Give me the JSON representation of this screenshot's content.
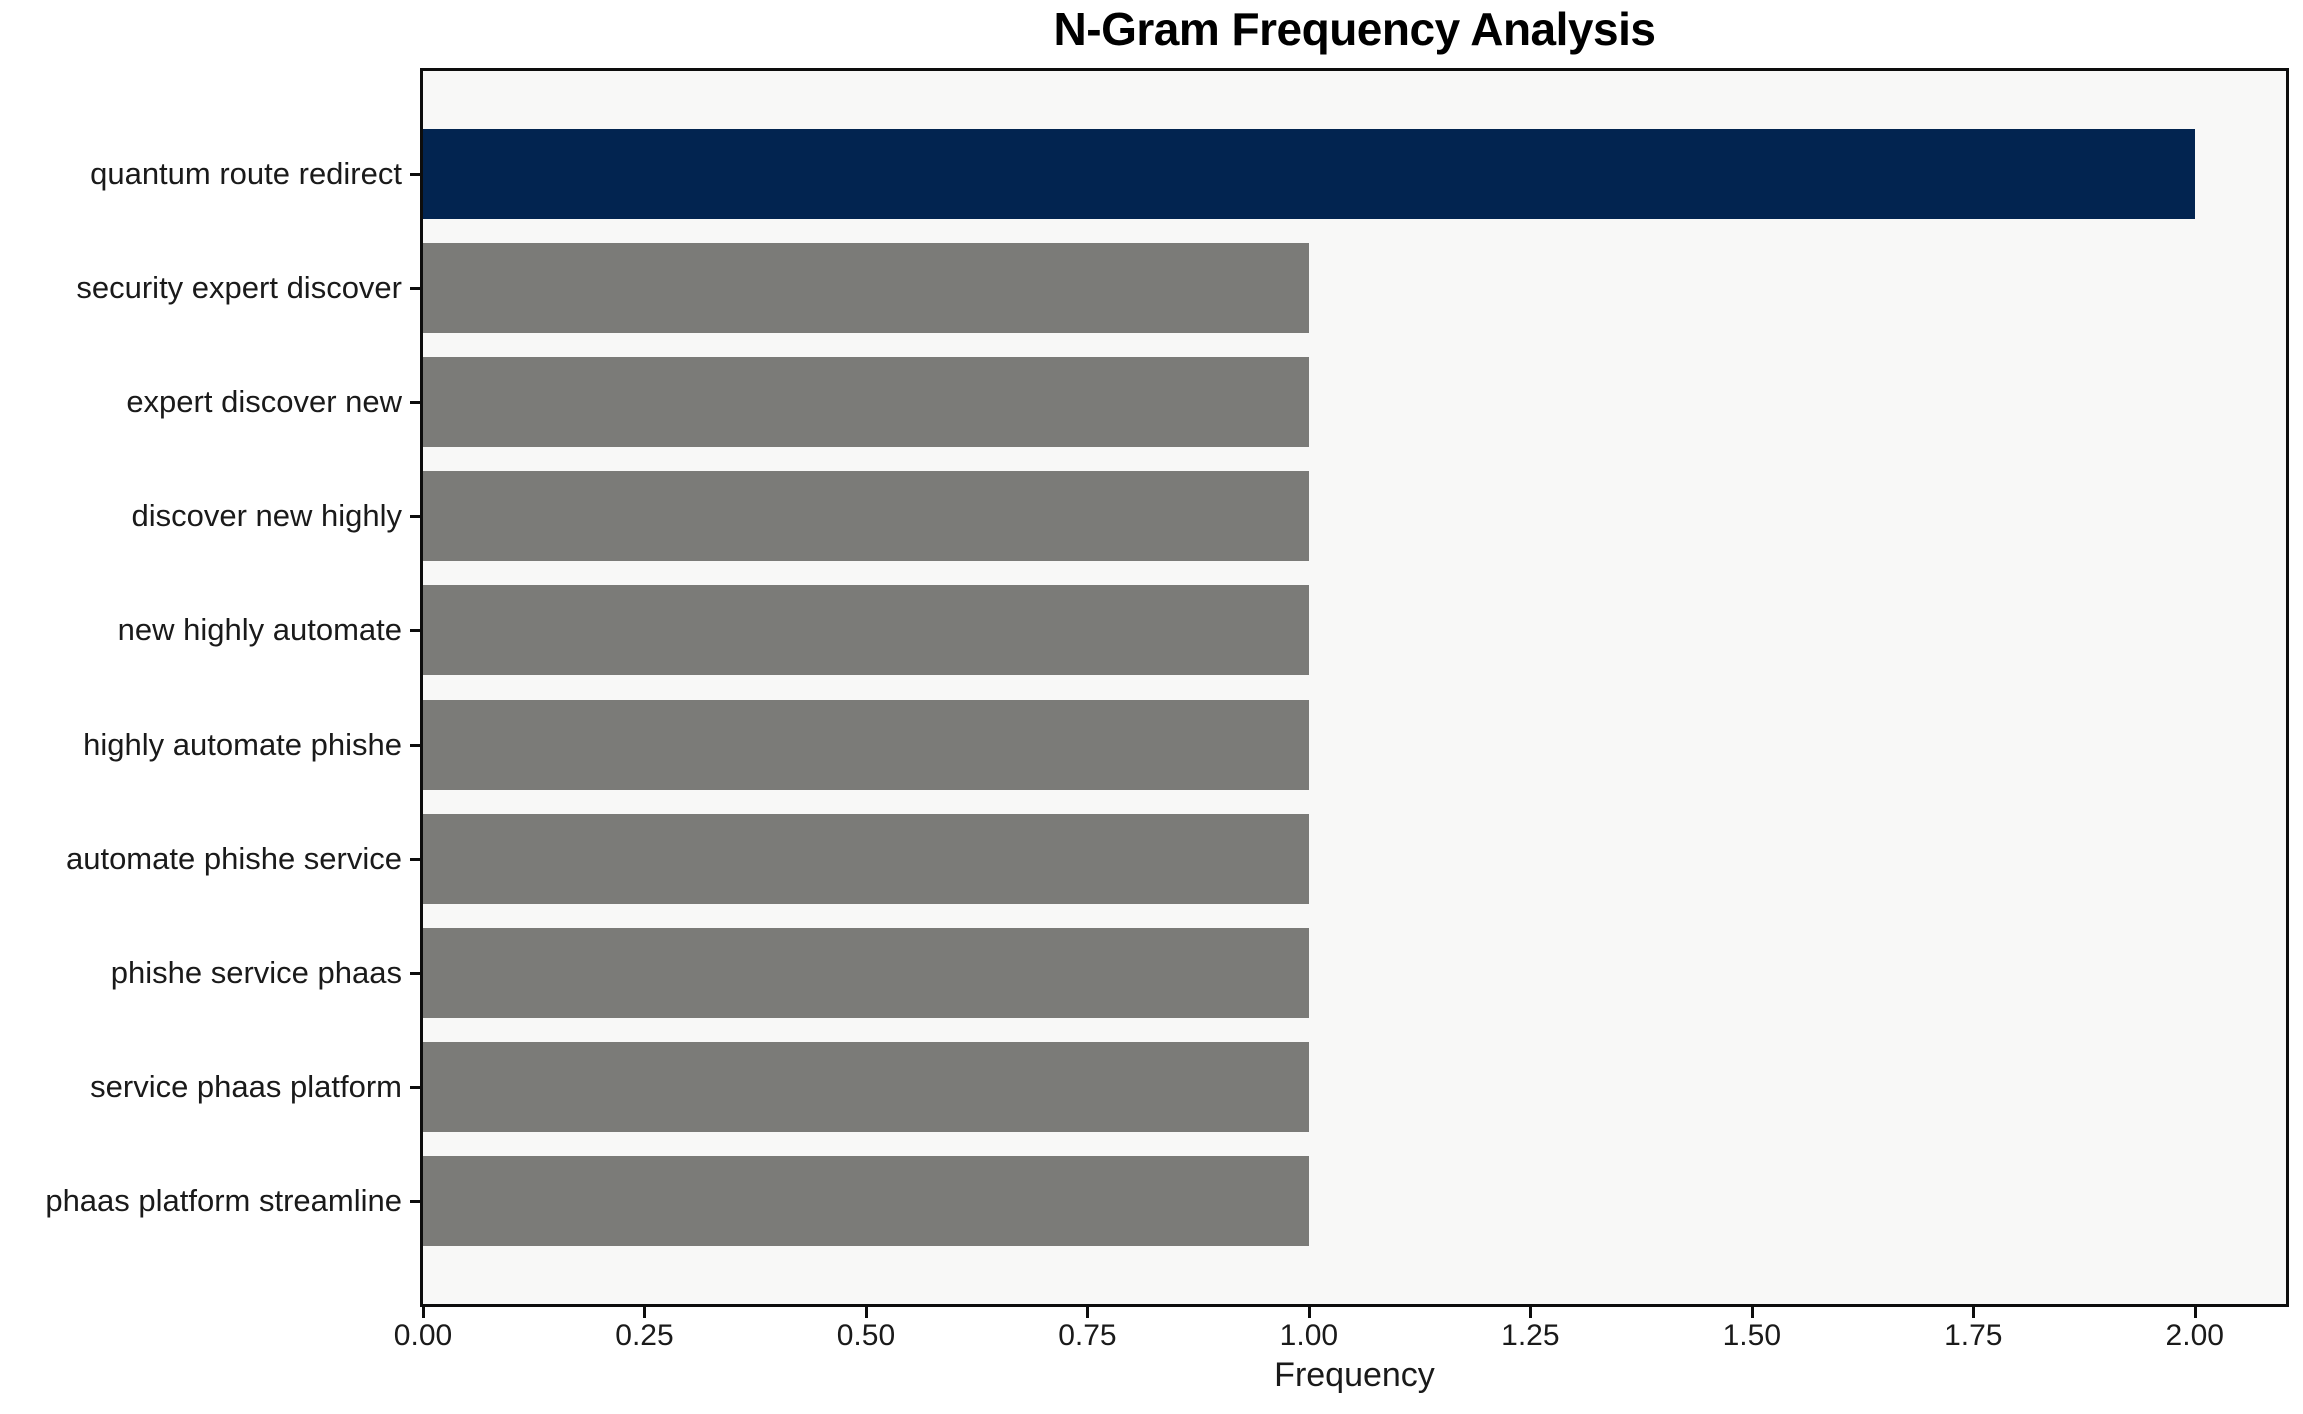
{
  "chart_data": {
    "type": "bar",
    "orientation": "horizontal",
    "title": "N-Gram Frequency Analysis",
    "xlabel": "Frequency",
    "ylabel": "",
    "categories": [
      "quantum route redirect",
      "security expert discover",
      "expert discover new",
      "discover new highly",
      "new highly automate",
      "highly automate phishe",
      "automate phishe service",
      "phishe service phaas",
      "service phaas platform",
      "phaas platform streamline"
    ],
    "values": [
      2,
      1,
      1,
      1,
      1,
      1,
      1,
      1,
      1,
      1
    ],
    "xlim": [
      0,
      2.103
    ],
    "xticks": [
      0.0,
      0.25,
      0.5,
      0.75,
      1.0,
      1.25,
      1.5,
      1.75,
      2.0
    ],
    "xtick_labels": [
      "0.00",
      "0.25",
      "0.50",
      "0.75",
      "1.00",
      "1.25",
      "1.50",
      "1.75",
      "2.00"
    ],
    "grid": false,
    "legend": null,
    "highlight": {
      "index": 0,
      "color": "#022450"
    },
    "default_bar_color": "#7b7b78",
    "colors": {
      "plot_background": "#f8f8f7",
      "figure_background": "#ffffff",
      "spine": "#0d0d0d",
      "text": "#1a1a1a"
    }
  }
}
